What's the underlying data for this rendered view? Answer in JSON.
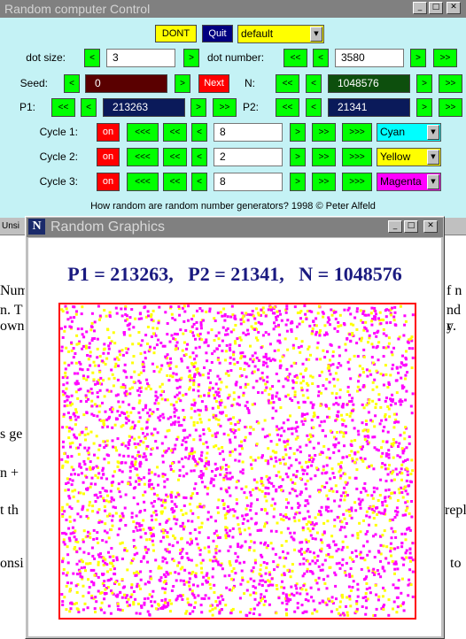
{
  "control_window": {
    "title": "Random computer Control",
    "titlebar_buttons": [
      "_",
      "□",
      "✕"
    ],
    "top_row": {
      "dont_label": "DONT",
      "quit_label": "Quit",
      "preset_select": "default"
    },
    "dot_size": {
      "label": "dot size:",
      "value": "3",
      "dec": "<",
      "inc": ">"
    },
    "dot_number": {
      "label": "dot number:",
      "value": "3580",
      "dec_big": "<<",
      "dec": "<",
      "inc": ">",
      "inc_big": ">>"
    },
    "seed": {
      "label": "Seed:",
      "value": "0",
      "dec": "<",
      "inc": ">",
      "next_label": "Next"
    },
    "n": {
      "label": "N:",
      "value": "1048576",
      "dec_big": "<<",
      "dec": "<",
      "inc": ">",
      "inc_big": ">>"
    },
    "p1": {
      "label": "P1:",
      "value": "213263",
      "dec_big": "<<",
      "dec": "<",
      "inc": ">",
      "inc_big": ">>"
    },
    "p2": {
      "label": "P2:",
      "value": "21341",
      "dec_big": "<<",
      "dec": "<",
      "inc": ">",
      "inc_big": ">>"
    },
    "cycles": [
      {
        "label": "Cycle 1:",
        "toggle": "on",
        "value": "8",
        "color": "Cyan",
        "color_hex": "#00ffff"
      },
      {
        "label": "Cycle 2:",
        "toggle": "on",
        "value": "2",
        "color": "Yellow",
        "color_hex": "#ffff00"
      },
      {
        "label": "Cycle 3:",
        "toggle": "on",
        "value": "8",
        "color": "Magenta",
        "color_hex": "#ff00ff"
      }
    ],
    "cycle_buttons": {
      "dec3": "<<<",
      "dec2": "<<",
      "dec1": "<",
      "inc1": ">",
      "inc2": ">>",
      "inc3": ">>>"
    },
    "footer": "How random are random number generators? 1998 © Peter Alfeld"
  },
  "graphics_window": {
    "title": "Random Graphics",
    "titlebar_buttons": [
      "_",
      "□",
      "✕"
    ],
    "logo": "N",
    "heading": {
      "p1": "P1 = 213263,",
      "p2": "P2 = 21341,",
      "n": "N = 1048576"
    }
  },
  "background_document": {
    "strip_label": "Unsi",
    "left_fragments": [
      "Num",
      "n. T",
      "own",
      "s ge",
      "n +",
      "t th",
      "onsi"
    ],
    "right_fragments": [
      "f n",
      "nd r",
      "y.",
      "repl",
      "to"
    ]
  },
  "colors": {
    "cyan_panel": "#c4f2f5",
    "button_green": "#00ff00",
    "button_red": "#ff0000",
    "dont_yellow": "#ffff00",
    "quit_navy": "#000080",
    "seed_field": "#5a0000",
    "n_field": "#0d4f0d",
    "p_field": "#0a1a5a",
    "heading_blue": "#1a1a80",
    "plot_border": "#ff0000",
    "dot_yellow": "#ffff00",
    "dot_magenta": "#ff00ff"
  }
}
